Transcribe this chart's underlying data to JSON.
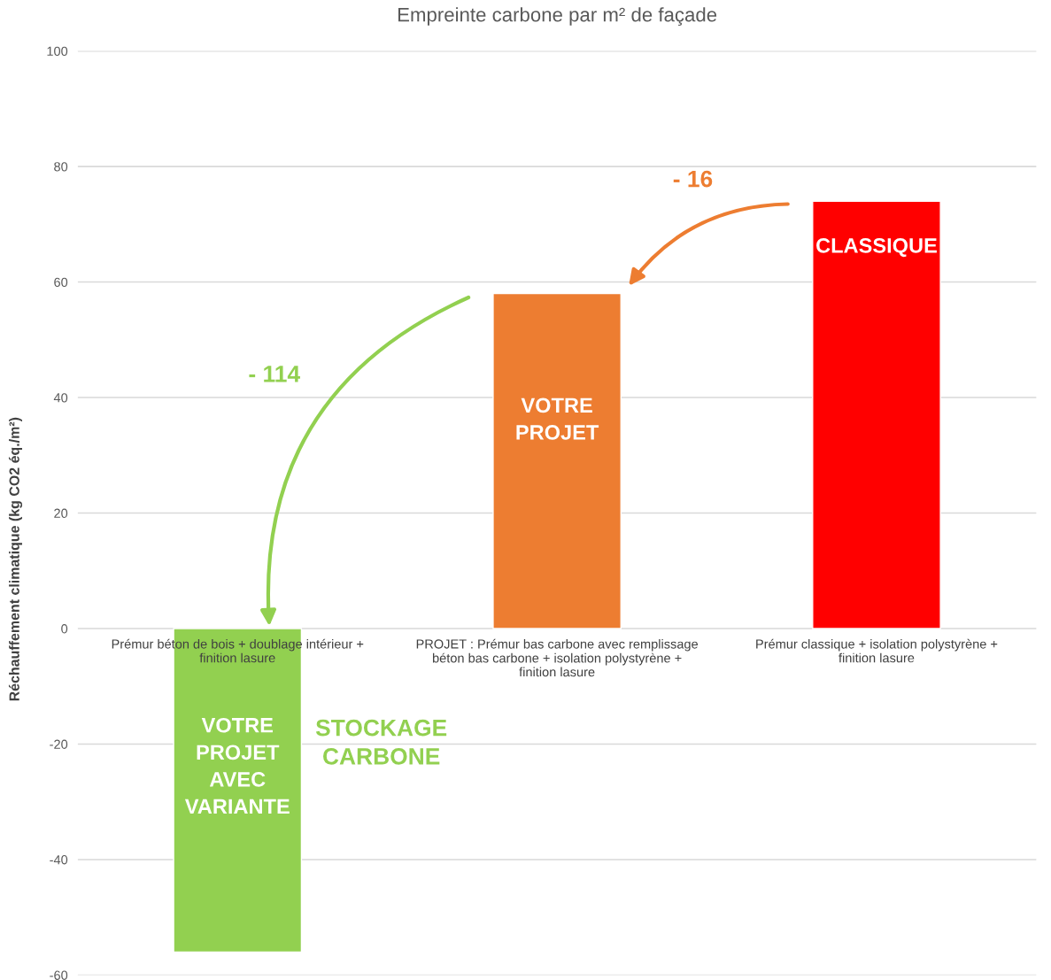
{
  "chart_data": {
    "type": "bar",
    "title": "Empreinte carbone par m² de façade",
    "ylabel": "Réchauffement climatique (kg CO2 éq./m²)",
    "categories": [
      "Prémur béton de bois + doublage intérieur + finition lasure",
      "PROJET : Prémur bas carbone avec remplissage béton bas carbone + isolation polystyrène + finition lasure",
      "Prémur classique + isolation polystyrène + finition lasure"
    ],
    "values": [
      -56,
      58,
      74
    ],
    "colors": [
      "#92d050",
      "#ed7d31",
      "#ff0000"
    ],
    "ylim": [
      -60,
      100
    ],
    "yticks": [
      -60,
      -40,
      -20,
      0,
      20,
      40,
      60,
      80,
      100
    ],
    "grid": "y",
    "annotations": [
      "VOTRE\nPROJET\nAVEC\nVARIANTE",
      "VOTRE\nPROJET",
      "CLASSIQUE",
      "- 16",
      "- 114",
      "STOCKAGE\nCARBONE"
    ]
  }
}
